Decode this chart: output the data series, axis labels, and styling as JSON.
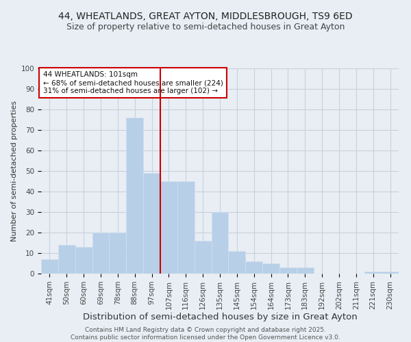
{
  "title1": "44, WHEATLANDS, GREAT AYTON, MIDDLESBROUGH, TS9 6ED",
  "title2": "Size of property relative to semi-detached houses in Great Ayton",
  "xlabel": "Distribution of semi-detached houses by size in Great Ayton",
  "ylabel": "Number of semi-detached properties",
  "categories": [
    "41sqm",
    "50sqm",
    "60sqm",
    "69sqm",
    "78sqm",
    "88sqm",
    "97sqm",
    "107sqm",
    "116sqm",
    "126sqm",
    "135sqm",
    "145sqm",
    "154sqm",
    "164sqm",
    "173sqm",
    "183sqm",
    "192sqm",
    "202sqm",
    "211sqm",
    "221sqm",
    "230sqm"
  ],
  "values": [
    7,
    14,
    13,
    20,
    20,
    76,
    49,
    45,
    45,
    16,
    30,
    11,
    6,
    5,
    3,
    3,
    0,
    0,
    0,
    1,
    1
  ],
  "bar_color": "#b8cfe8",
  "bar_edge_color": "#d0dff0",
  "vline_x_idx": 6,
  "vline_color": "#cc0000",
  "annotation_title": "44 WHEATLANDS: 101sqm",
  "annotation_line1": "← 68% of semi-detached houses are smaller (224)",
  "annotation_line2": "31% of semi-detached houses are larger (102) →",
  "annotation_box_color": "#ffffff",
  "annotation_box_edge": "#cc0000",
  "ylim": [
    0,
    100
  ],
  "yticks": [
    0,
    10,
    20,
    30,
    40,
    50,
    60,
    70,
    80,
    90,
    100
  ],
  "grid_color": "#c8d0dc",
  "bg_color": "#e8eef4",
  "footer": "Contains HM Land Registry data © Crown copyright and database right 2025.\nContains public sector information licensed under the Open Government Licence v3.0.",
  "title1_fontsize": 10,
  "title2_fontsize": 9,
  "xlabel_fontsize": 9.5,
  "ylabel_fontsize": 8,
  "tick_fontsize": 7.5,
  "annot_fontsize": 7.5,
  "footer_fontsize": 6.5
}
